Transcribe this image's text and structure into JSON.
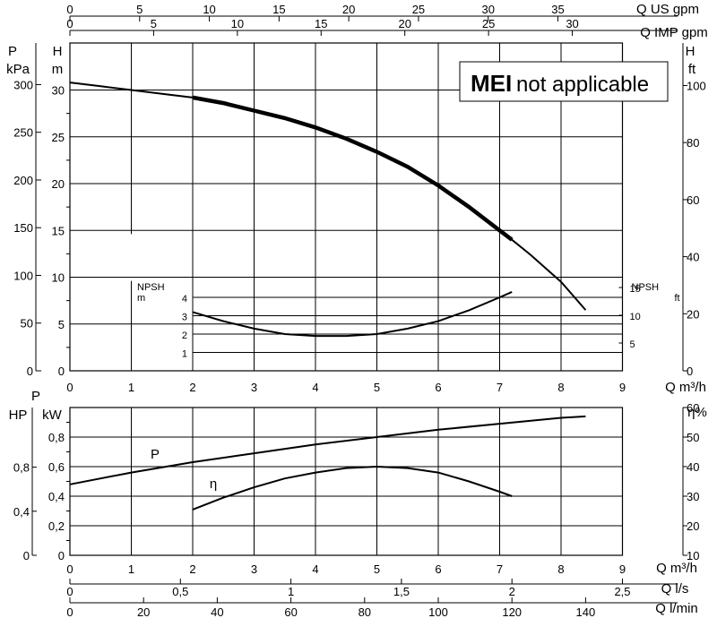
{
  "chart_data": [
    {
      "type": "line",
      "name": "head-curve-chart",
      "xlabel": "Q m³/h",
      "x_ticks": [
        "0",
        "1",
        "2",
        "3",
        "4",
        "5",
        "6",
        "7",
        "8",
        "9"
      ],
      "xlim": [
        0,
        9
      ],
      "axes": {
        "head_m": {
          "label": "H",
          "unit": "m",
          "ticks": [
            "0",
            "5",
            "10",
            "15",
            "20",
            "25",
            "30"
          ],
          "ylim": [
            0,
            32
          ]
        },
        "pressure_kpa": {
          "label": "P",
          "unit": "kPa",
          "ticks": [
            "0",
            "50",
            "100",
            "150",
            "200",
            "250",
            "300"
          ]
        },
        "head_ft": {
          "label": "H",
          "unit": "ft",
          "ticks": [
            "0",
            "20",
            "40",
            "60",
            "80",
            "100"
          ]
        },
        "npsh_m": {
          "label": "NPSH",
          "unit": "m",
          "ticks": [
            "1",
            "2",
            "3",
            "4"
          ]
        },
        "npsh_ft": {
          "label": "NPSH",
          "unit": "ft",
          "ticks": [
            "5",
            "10",
            "15"
          ]
        }
      },
      "top_axes": [
        {
          "label": "Q US gpm",
          "ticks": [
            "0",
            "5",
            "10",
            "15",
            "20",
            "25",
            "30",
            "35"
          ],
          "per_m3h": 4.403
        },
        {
          "label": "Q IMP gpm",
          "ticks": [
            "0",
            "5",
            "10",
            "15",
            "20",
            "25",
            "30"
          ],
          "per_m3h": 3.666
        }
      ],
      "series": [
        {
          "key": "head",
          "points": [
            [
              0,
              30.8
            ],
            [
              0.5,
              30.4
            ],
            [
              1,
              30.0
            ],
            [
              1.5,
              29.6
            ],
            [
              2,
              29.2
            ],
            [
              2.5,
              28.6
            ],
            [
              3,
              27.8
            ],
            [
              3.5,
              27.0
            ],
            [
              4,
              26.0
            ],
            [
              4.5,
              24.8
            ],
            [
              5,
              23.4
            ],
            [
              5.5,
              21.8
            ],
            [
              6,
              19.8
            ],
            [
              6.5,
              17.5
            ],
            [
              7,
              15.0
            ],
            [
              7.2,
              14.0
            ],
            [
              7.5,
              12.4
            ],
            [
              8,
              9.5
            ],
            [
              8.4,
              6.5
            ]
          ],
          "bold_range": [
            2,
            7.2
          ]
        },
        {
          "key": "npsh",
          "points": [
            [
              2,
              3.2
            ],
            [
              2.5,
              2.7
            ],
            [
              3,
              2.3
            ],
            [
              3.5,
              2.0
            ],
            [
              4,
              1.9
            ],
            [
              4.5,
              1.9
            ],
            [
              5,
              2.0
            ],
            [
              5.5,
              2.3
            ],
            [
              6,
              2.7
            ],
            [
              6.5,
              3.3
            ],
            [
              7,
              4.0
            ],
            [
              7.2,
              4.3
            ]
          ]
        }
      ],
      "mei_label": {
        "bold": "MEI",
        "text": "not applicable"
      }
    },
    {
      "type": "line",
      "name": "power-efficiency-chart",
      "xlabel": "Q m³/h",
      "x_ticks": [
        "0",
        "1",
        "2",
        "3",
        "4",
        "5",
        "6",
        "7",
        "8",
        "9"
      ],
      "xlim": [
        0,
        9
      ],
      "axes": {
        "power_kw": {
          "label": "P",
          "unit": "kW",
          "ticks": [
            "0",
            "0,2",
            "0,4",
            "0,6",
            "0,8"
          ],
          "ylim": [
            0,
            1.0
          ]
        },
        "power_hp": {
          "label": "HP",
          "ticks": [
            "0",
            "0,4",
            "0,8"
          ]
        },
        "efficiency": {
          "label": "η",
          "unit": "%",
          "ticks": [
            "10",
            "20",
            "30",
            "40",
            "50",
            "60"
          ]
        }
      },
      "bottom_axes": [
        {
          "label": "Q l/s",
          "ticks": [
            "0",
            "0,5",
            "1",
            "1,5",
            "2",
            "2,5"
          ]
        },
        {
          "label": "Q l/min",
          "ticks": [
            "0",
            "20",
            "40",
            "60",
            "80",
            "100",
            "120",
            "140"
          ]
        }
      ],
      "series": [
        {
          "key": "power",
          "label": "P",
          "points": [
            [
              0,
              0.48
            ],
            [
              1,
              0.56
            ],
            [
              2,
              0.63
            ],
            [
              3,
              0.69
            ],
            [
              4,
              0.75
            ],
            [
              5,
              0.8
            ],
            [
              6,
              0.85
            ],
            [
              7,
              0.89
            ],
            [
              8,
              0.93
            ],
            [
              8.4,
              0.94
            ]
          ]
        },
        {
          "key": "efficiency",
          "label": "η",
          "points": [
            [
              2,
              0.31
            ],
            [
              2.5,
              0.39
            ],
            [
              3,
              0.46
            ],
            [
              3.5,
              0.52
            ],
            [
              4,
              0.56
            ],
            [
              4.5,
              0.59
            ],
            [
              5,
              0.6
            ],
            [
              5.5,
              0.59
            ],
            [
              6,
              0.56
            ],
            [
              6.5,
              0.5
            ],
            [
              7,
              0.43
            ],
            [
              7.2,
              0.4
            ]
          ]
        }
      ]
    }
  ]
}
